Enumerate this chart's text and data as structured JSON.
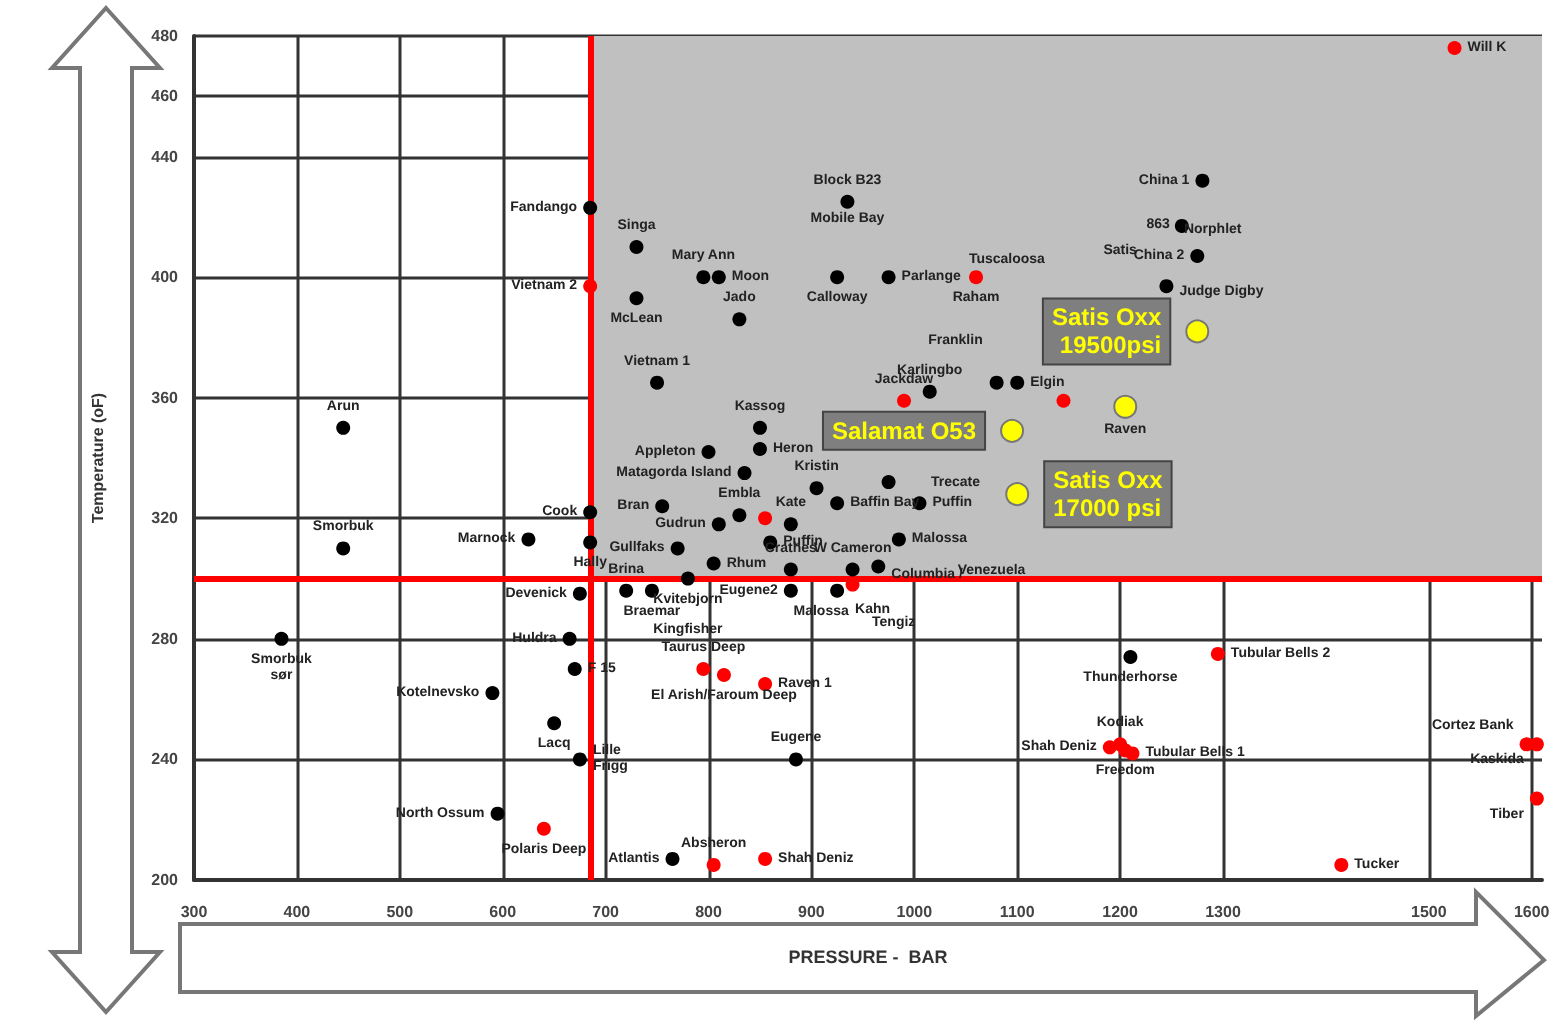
{
  "chart_data": {
    "type": "scatter",
    "xlabel": "PRESSURE -  BAR",
    "ylabel": "Temperature (oF)",
    "xlim": [
      300,
      1610
    ],
    "ylim": [
      200,
      480
    ],
    "xticks": [
      300,
      400,
      500,
      600,
      700,
      800,
      900,
      1000,
      1100,
      1200,
      1300,
      1500,
      1600
    ],
    "yticks": [
      200,
      240,
      280,
      320,
      360,
      400,
      440,
      460,
      480
    ],
    "grid": true,
    "marker": "circle",
    "series": [
      {
        "color": "#000000",
        "x": [
          685,
          730,
          795,
          810,
          830,
          730,
          935,
          925,
          975,
          1280,
          1260,
          1275,
          1245,
          750,
          445,
          850,
          800,
          850,
          835,
          905,
          755,
          830,
          880,
          685,
          625,
          685,
          445,
          810,
          770,
          860,
          805,
          720,
          745,
          780,
          675,
          665,
          385,
          880,
          880,
          925,
          940,
          965,
          985,
          925,
          1005,
          975,
          1015,
          1080,
          1100,
          590,
          670,
          650,
          675,
          595,
          885,
          765,
          1210
        ],
        "values": [
          423,
          410,
          400,
          400,
          386,
          393,
          425,
          400,
          400,
          432,
          417,
          407,
          397,
          365,
          350,
          350,
          342,
          343,
          335,
          330,
          324,
          321,
          318,
          322,
          313,
          312,
          310,
          318,
          310,
          312,
          305,
          296,
          296,
          300,
          295,
          280,
          280,
          303,
          296,
          296,
          303,
          304,
          313,
          325,
          325,
          332,
          362,
          365,
          365,
          262,
          270,
          252,
          240,
          222,
          240,
          207,
          274
        ],
        "value_labels": [
          "Fandango",
          "Singa",
          "Mary Ann",
          "Moon",
          "Jado",
          "McLean",
          "Block B23",
          "Calloway",
          "Parlange",
          "China 1",
          null,
          "China 2",
          "Judge Digby",
          "Vietnam 1",
          "Arun",
          "Kassog",
          "Appleton",
          "Heron",
          "Matagorda Island",
          "Kristin",
          "Bran",
          "Embla",
          "Kate",
          "Cook",
          "Marnock",
          "Hally",
          "Smorbuk",
          "Gudrun",
          "Gullfaks",
          "Puffin",
          "Rhum",
          "Brina",
          "Braemar",
          "Kvitebjorn",
          "Devenick",
          "Huldra",
          "Smorbuk\nsør",
          "Crathes",
          "Eugene2",
          "Malossa",
          "W Cameron",
          "Columbia /",
          "Malossa",
          "Baffin Bay",
          "Puffin",
          null,
          "Karlingbo",
          null,
          "Elgin",
          "Kotelnevsko",
          "F 15",
          "Lacq",
          "Lille\nFrigg",
          "North Ossum",
          "Eugene",
          "Atlantis",
          "Thunderhorse"
        ]
      },
      {
        "color": "#ff0000",
        "x": [
          685,
          1060,
          855,
          940,
          990,
          1145,
          1525,
          640,
          795,
          815,
          855,
          805,
          855,
          1190,
          1200,
          1205,
          1212,
          1295,
          1595,
          1605,
          1605,
          1415
        ],
        "values": [
          397,
          400,
          320,
          298,
          359,
          359,
          476,
          217,
          270,
          268,
          265,
          205,
          207,
          244,
          245,
          243,
          242,
          275,
          245,
          245,
          227,
          205
        ],
        "value_labels": [
          "Vietnam 2",
          "Raham",
          null,
          "Kahn",
          "Jackdaw",
          null,
          "Will K",
          "Polaris Deep",
          "Taurus Deep",
          "El Arish/Faroum Deep",
          "Raven 1",
          "Absheron",
          "Shah Deniz",
          "Shah Deniz",
          "Kodiak",
          "Freedom",
          "Tubular Bells 1",
          "Tubular Bells 2",
          "Cortez Bank",
          "Kaskida",
          "Tiber",
          "Tucker"
        ]
      },
      {
        "color": "#ffff00",
        "x": [
          1275,
          1205,
          1095,
          1100
        ],
        "values": [
          382,
          357,
          349,
          328
        ],
        "value_labels": [
          "Satis Oxx\n19500psi",
          null,
          "Salamat O53",
          "Satis Oxx\n17000 psi"
        ]
      }
    ],
    "annotations": [
      {
        "text": "Mobile Bay",
        "x": 935,
        "y": 425
      },
      "Tuscaloosa",
      "Satis",
      "Norphlet",
      "Franklin",
      "Kingfisher",
      {
        "text": "Tengiz",
        "x": 980,
        "y": 297
      },
      "Venezuela",
      "Trecate",
      {
        "text": "Raven",
        "x": 1205,
        "y": 357
      },
      "863"
    ],
    "ref_lines": [
      {
        "axis": "x",
        "value": 685,
        "color": "#ff0000"
      },
      {
        "axis": "y",
        "value": 300,
        "color": "#ff0000"
      }
    ],
    "bands": [
      {
        "axis": "x",
        "from": 685,
        "to": 1610,
        "color": "#c0c0c0"
      }
    ]
  }
}
